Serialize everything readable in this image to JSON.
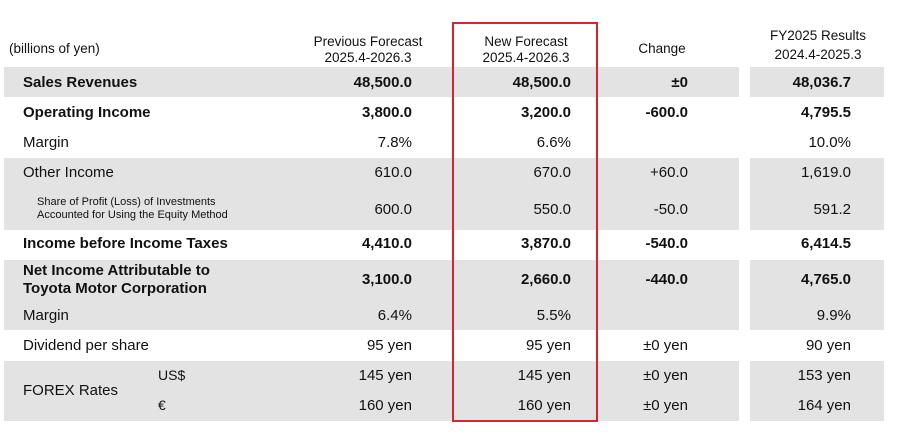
{
  "units": "(billions of yen)",
  "headers": {
    "prev": [
      "Previous Forecast",
      "2025.4-2026.3"
    ],
    "new": [
      "New Forecast",
      "2025.4-2026.3"
    ],
    "change": "Change",
    "results": [
      "FY2025 Results",
      "2024.4-2025.3"
    ]
  },
  "rows": {
    "sales": {
      "label": "Sales Revenues",
      "prev": "48,500.0",
      "new": "48,500.0",
      "change": "±0",
      "results": "48,036.7"
    },
    "op_income": {
      "label": "Operating Income",
      "prev": "3,800.0",
      "new": "3,200.0",
      "change": "-600.0",
      "results": "4,795.5"
    },
    "margin1": {
      "label": "Margin",
      "prev": "7.8%",
      "new": "6.6%",
      "change": "",
      "results": "10.0%"
    },
    "other_income": {
      "label": "Other Income",
      "prev": "610.0",
      "new": "670.0",
      "change": "+60.0",
      "results": "1,619.0"
    },
    "equity": {
      "label_line1": "Share of Profit (Loss) of Investments",
      "label_line2": "Accounted for Using the Equity Method",
      "prev": "600.0",
      "new": "550.0",
      "change": "-50.0",
      "results": "591.2"
    },
    "pretax": {
      "label": "Income before Income Taxes",
      "prev": "4,410.0",
      "new": "3,870.0",
      "change": "-540.0",
      "results": "6,414.5"
    },
    "net_income": {
      "label_line1": "Net Income Attributable to",
      "label_line2": "Toyota Motor Corporation",
      "prev": "3,100.0",
      "new": "2,660.0",
      "change": "-440.0",
      "results": "4,765.0"
    },
    "margin2": {
      "label": "Margin",
      "prev": "6.4%",
      "new": "5.5%",
      "change": "",
      "results": "9.9%"
    },
    "dividend": {
      "label": "Dividend per share",
      "prev": "95 yen",
      "new": "95 yen",
      "change": "±0 yen",
      "results": "90 yen"
    },
    "forex_label": "FOREX Rates",
    "usd": {
      "label": "US$",
      "prev": "145 yen",
      "new": "145 yen",
      "change": "±0 yen",
      "results": "153 yen"
    },
    "eur": {
      "label": "€",
      "prev": "160 yen",
      "new": "160 yen",
      "change": "±0 yen",
      "results": "164 yen"
    }
  },
  "colors": {
    "band": "#e3e3e3",
    "highlight": "#d9232d"
  }
}
